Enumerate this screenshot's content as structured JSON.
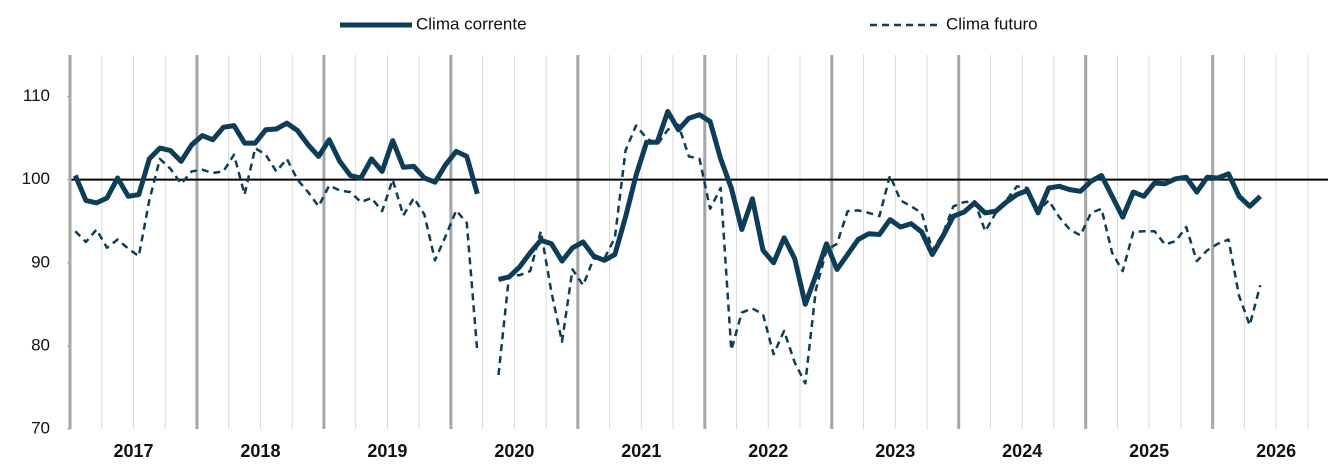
{
  "chart_data": {
    "type": "line",
    "categories": [
      "2017",
      null,
      null,
      null,
      null,
      null,
      null,
      null,
      null,
      null,
      null,
      null,
      "2018",
      null,
      null,
      null,
      null,
      null,
      null,
      null,
      null,
      null,
      null,
      null,
      "2019",
      null,
      null,
      null,
      null,
      null,
      null,
      null,
      null,
      null,
      null,
      null,
      "2020",
      null,
      null,
      null,
      null,
      null,
      null,
      null,
      null,
      null,
      null,
      null,
      "2021",
      null,
      null,
      null,
      null,
      null,
      null,
      null,
      null,
      null,
      null,
      null,
      "2022",
      null,
      null,
      null,
      null,
      null,
      null,
      null,
      null,
      null,
      null,
      null,
      "2023",
      null,
      null,
      null,
      null,
      null,
      null,
      null,
      null,
      null,
      null,
      null,
      "2024",
      null,
      null,
      null,
      null,
      null,
      null,
      null,
      null,
      null,
      null,
      null,
      "2025",
      null,
      null,
      null,
      null,
      null,
      null,
      null,
      null,
      null,
      null,
      null,
      "2026",
      null,
      null,
      null,
      null
    ],
    "series": [
      {
        "name": "Clima corrente",
        "color": "#0e3d58",
        "style": "solid",
        "values": [
          100.5,
          97.5,
          97.2,
          97.8,
          100.2,
          98,
          98.2,
          102.5,
          103.8,
          103.5,
          102.2,
          104.2,
          105.3,
          104.8,
          106.3,
          106.5,
          104.4,
          104.4,
          106,
          106.1,
          106.8,
          105.9,
          104.2,
          102.8,
          104.8,
          102.2,
          100.5,
          100.2,
          102.5,
          101,
          104.7,
          101.5,
          101.6,
          100.2,
          99.7,
          101.8,
          103.4,
          102.8,
          98.3,
          null,
          88,
          88.3,
          89.5,
          91.2,
          92.7,
          92.3,
          90.2,
          91.8,
          92.5,
          90.8,
          90.3,
          91,
          95.5,
          100.5,
          104.5,
          104.5,
          108.2,
          106,
          107.4,
          107.8,
          107,
          102.5,
          99,
          94,
          97.7,
          91.5,
          90,
          93,
          90.5,
          85,
          88.5,
          92.3,
          89.2,
          91,
          92.8,
          93.5,
          93.4,
          95.2,
          94.3,
          94.7,
          93.7,
          91,
          93.2,
          95.6,
          96.1,
          97.2,
          96,
          96.2,
          97.3,
          98.2,
          98.7,
          96,
          99,
          99.2,
          98.8,
          98.6,
          99.8,
          100.5,
          98,
          95.5,
          98.5,
          98,
          99.6,
          99.5,
          100.1,
          100.3,
          98.5,
          100.3,
          100.2,
          100.7,
          98,
          96.8,
          98
        ]
      },
      {
        "name": "Clima futuro",
        "color": "#0e3d58",
        "style": "dashed",
        "values": [
          93.8,
          92.5,
          94,
          91.8,
          92.8,
          91.7,
          90.8,
          97.5,
          102.5,
          101.3,
          99.5,
          101,
          101.2,
          100.8,
          101,
          103,
          98.2,
          103.8,
          103,
          101,
          102.5,
          100,
          98.5,
          96.8,
          99.3,
          98.7,
          98.5,
          97.3,
          97.8,
          96.2,
          100,
          95.7,
          97.8,
          95.8,
          90.3,
          93.2,
          96.3,
          94.8,
          79.3,
          null,
          76.5,
          88.5,
          88.5,
          89,
          93.8,
          86.5,
          80.5,
          89.2,
          87.3,
          90.5,
          90.5,
          93,
          103.5,
          106.5,
          105,
          104.2,
          106,
          106.6,
          102.8,
          102.5,
          96.5,
          99,
          79.5,
          84,
          84.5,
          83.8,
          79,
          81.8,
          78,
          75.5,
          86.8,
          91.5,
          92.3,
          96.2,
          96.3,
          96,
          95.6,
          100.5,
          97.5,
          96.8,
          96,
          91.5,
          93.5,
          96.8,
          97.3,
          97.4,
          93.8,
          96,
          97.5,
          99.2,
          99,
          96.2,
          97.5,
          95.5,
          94,
          93.3,
          96,
          96.5,
          91.2,
          89,
          93.7,
          93.8,
          93.8,
          92.2,
          92.6,
          94.3,
          90.2,
          91.5,
          92.3,
          92.8,
          86,
          82.5,
          87.3
        ]
      }
    ],
    "reference_line": 100,
    "ylim": [
      70,
      115
    ],
    "yticks": [
      70,
      80,
      90,
      100,
      110
    ]
  }
}
